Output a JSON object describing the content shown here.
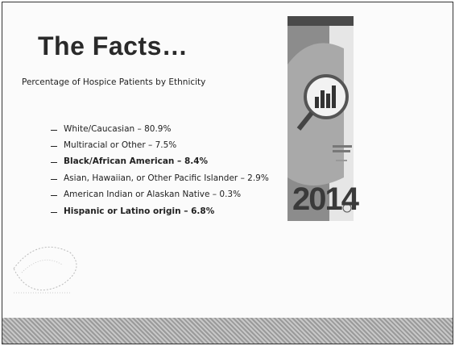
{
  "slide": {
    "title": "The Facts…",
    "subtitle": "Percentage of Hospice Patients by Ethnicity",
    "items": [
      {
        "text": "White/Caucasian – 80.9%",
        "bold": false
      },
      {
        "text": "Multiracial or Other – 7.5%",
        "bold": false
      },
      {
        "text": "Black/African American – 8.4%",
        "bold": true
      },
      {
        "text": "Asian, Hawaiian, or Other Pacific Islander – 2.9%",
        "bold": false
      },
      {
        "text": "American Indian or Alaskan Native – 0.3%",
        "bold": false
      },
      {
        "text": "Hispanic or Latino origin – 6.8%",
        "bold": true
      }
    ],
    "cover_year": "2014"
  }
}
